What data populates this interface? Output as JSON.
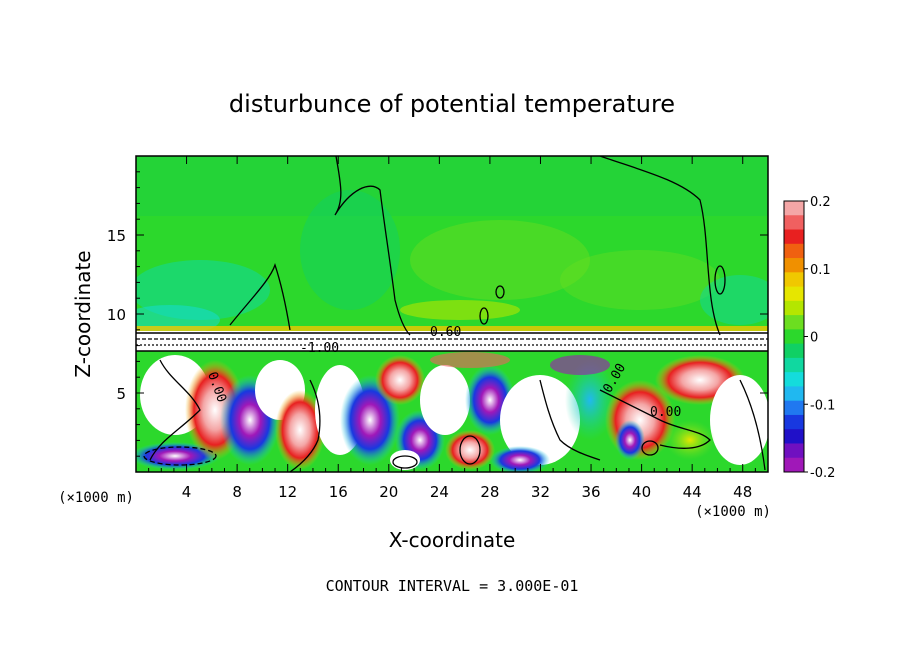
{
  "chart_data": {
    "type": "heatmap",
    "title": "disturbunce of potential temperature",
    "xlabel": "X-coordinate",
    "ylabel": "Z-coordinate",
    "x_unit": "(×1000 m)",
    "z_unit": "(×1000 m)",
    "xlim": [
      0,
      50
    ],
    "ylim": [
      0,
      20
    ],
    "x_ticks": [
      4,
      8,
      12,
      16,
      20,
      24,
      28,
      32,
      36,
      40,
      44,
      48
    ],
    "y_ticks": [
      5,
      10,
      15
    ],
    "colorbar": {
      "range": [
        -0.2,
        0.2
      ],
      "tick_labels": [
        "0.2",
        "0.1",
        "0",
        "-0.1",
        "-0.2"
      ],
      "colors": [
        "#f4a6a6",
        "#f06060",
        "#e82020",
        "#f06010",
        "#f09000",
        "#f0c800",
        "#e6e600",
        "#b4e600",
        "#6cde20",
        "#2cd82c",
        "#10d064",
        "#10d8a0",
        "#14dcdc",
        "#20b8f0",
        "#2078f0",
        "#1838e0",
        "#2010c8",
        "#7010c0",
        "#a018b8"
      ]
    },
    "contour_labels": [
      "0.60",
      "-1.00",
      "0.00",
      "0.00",
      "0.00"
    ],
    "footer": "CONTOUR INTERVAL = 3.000E-01"
  }
}
